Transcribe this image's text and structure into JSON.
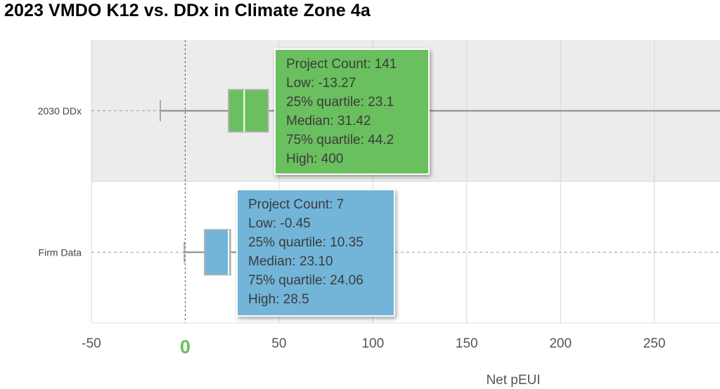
{
  "colors": {
    "ddx_fill": "#6abf5e",
    "firm_fill": "#72b5d9",
    "zero_label": "#6abf5e",
    "plot_band": "#ececec",
    "whisker": "#a8a8a8",
    "tip_green": "#6abf5e",
    "tip_blue": "#72b5d9"
  },
  "chart_data": {
    "type": "boxplot",
    "title": "2023 VMDO K12 vs. DDx in Climate Zone 4a",
    "xlabel": "Net pEUI",
    "xlim": [
      -50,
      285
    ],
    "xticks": [
      "-50",
      "0",
      "50",
      "100",
      "150",
      "200",
      "250"
    ],
    "xtick_values": [
      -50,
      0,
      50,
      100,
      150,
      200,
      250
    ],
    "series": [
      {
        "name": "2030 DDx",
        "count": 141,
        "low": -13.27,
        "q1": 23.1,
        "median": 31.42,
        "q3": 44.2,
        "high": 400,
        "tooltip": [
          "Project Count: 141",
          "Low: -13.27",
          "25% quartile: 23.1",
          "Median: 31.42",
          "75% quartile: 44.2",
          "High: 400"
        ]
      },
      {
        "name": "Firm Data",
        "count": 7,
        "low": -0.45,
        "q1": 10.35,
        "median": 23.1,
        "q3": 24.06,
        "high": 28.5,
        "tooltip": [
          "Project Count: 7",
          "Low: -0.45",
          "25% quartile: 10.35",
          "Median: 23.10",
          "75% quartile: 24.06",
          "High: 28.5"
        ]
      }
    ]
  }
}
